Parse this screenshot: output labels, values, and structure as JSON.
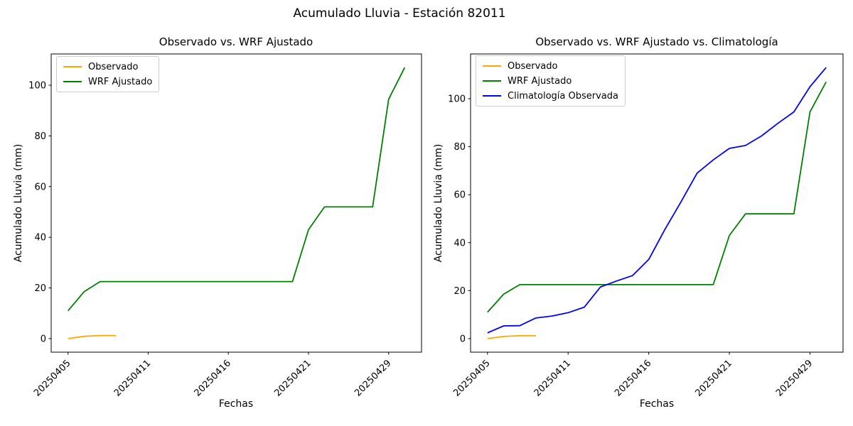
{
  "figure": {
    "title": "Acumulado Lluvia - Estación 82011",
    "background": "#ffffff"
  },
  "colors": {
    "observado": "#FFA500",
    "wrf": "#008000",
    "climatologia": "#0000FF"
  },
  "chart_data": [
    {
      "type": "line",
      "title": "Observado vs. WRF Ajustado",
      "xlabel": "Fechas",
      "ylabel": "Acumulado Lluvia (mm)",
      "grid": false,
      "legend_position": "upper left",
      "x_tick_rotation": 45,
      "x_tick_positions": [
        0,
        5,
        10,
        15,
        20
      ],
      "x_tick_labels": [
        "20250405",
        "20250411",
        "20250416",
        "20250421",
        "20250429"
      ],
      "y_ticks": [
        0,
        20,
        40,
        60,
        80,
        100
      ],
      "xlim": [
        -1.05,
        22.05
      ],
      "ylim": [
        -5.35,
        112.35
      ],
      "series": [
        {
          "name": "Observado",
          "color_key": "observado",
          "values": [
            0,
            0.9,
            1.2,
            1.2
          ]
        },
        {
          "name": "WRF Ajustado",
          "color_key": "wrf",
          "values": [
            11,
            18.5,
            22.5,
            22.5,
            22.5,
            22.5,
            22.5,
            22.5,
            22.5,
            22.5,
            22.5,
            22.5,
            22.5,
            22.5,
            22.5,
            43,
            52,
            52,
            52,
            52,
            94.5,
            107
          ]
        }
      ]
    },
    {
      "type": "line",
      "title": "Observado vs. WRF Ajustado vs. Climatología",
      "xlabel": "Fechas",
      "ylabel": "Acumulado Lluvia (mm)",
      "grid": false,
      "legend_position": "upper left",
      "x_tick_rotation": 45,
      "x_tick_positions": [
        0,
        5,
        10,
        15,
        20
      ],
      "x_tick_labels": [
        "20250405",
        "20250411",
        "20250416",
        "20250421",
        "20250429"
      ],
      "y_ticks": [
        0,
        20,
        40,
        60,
        80,
        100
      ],
      "xlim": [
        -1.05,
        22.05
      ],
      "ylim": [
        -5.65,
        118.65
      ],
      "series": [
        {
          "name": "Observado",
          "color_key": "observado",
          "values": [
            0,
            0.9,
            1.2,
            1.2
          ]
        },
        {
          "name": "WRF Ajustado",
          "color_key": "wrf",
          "values": [
            11,
            18.5,
            22.5,
            22.5,
            22.5,
            22.5,
            22.5,
            22.5,
            22.5,
            22.5,
            22.5,
            22.5,
            22.5,
            22.5,
            22.5,
            43,
            52,
            52,
            52,
            52,
            94.5,
            107
          ]
        },
        {
          "name": "Climatología Observada",
          "color_key": "climatologia",
          "values": [
            2.4,
            5.3,
            5.4,
            8.6,
            9.4,
            10.8,
            13.1,
            21.5,
            24,
            26.3,
            33,
            45.5,
            57,
            69,
            74.5,
            79.3,
            80.5,
            84.5,
            89.7,
            94.5,
            105,
            113
          ]
        }
      ]
    }
  ]
}
